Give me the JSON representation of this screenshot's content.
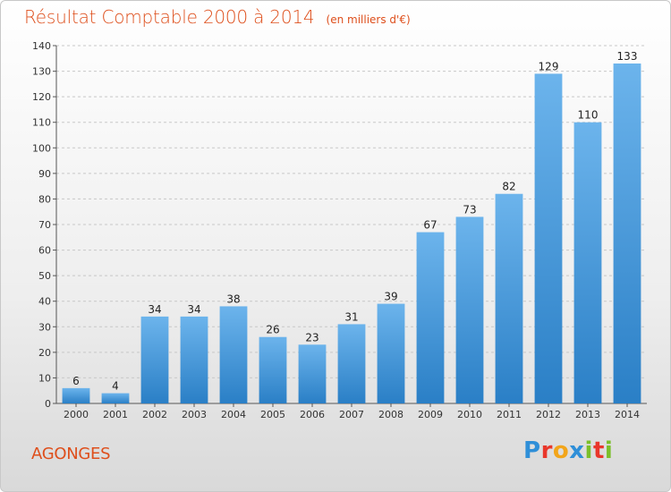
{
  "header": {
    "title": "Résultat Comptable 2000 à 2014",
    "subtitle": "(en milliers d'€)"
  },
  "footer": {
    "location": "AGONGES",
    "brand": [
      {
        "char": "P",
        "color": "#2f8fd8"
      },
      {
        "char": "r",
        "color": "#e9372b"
      },
      {
        "char": "o",
        "color": "#f2a51a"
      },
      {
        "char": "x",
        "color": "#2f8fd8"
      },
      {
        "char": "i",
        "color": "#7bbf2a"
      },
      {
        "char": "t",
        "color": "#e9372b"
      },
      {
        "char": "i",
        "color": "#7bbf2a"
      }
    ]
  },
  "colors": {
    "accent": "#de4f1c",
    "bar_light": "#6cb4ec",
    "bar_dark": "#2a7fc6"
  },
  "chart_data": {
    "type": "bar",
    "title": "Résultat Comptable 2000 à 2014",
    "subtitle": "(en milliers d'€)",
    "xlabel": "",
    "ylabel": "",
    "categories": [
      "2000",
      "2001",
      "2002",
      "2003",
      "2004",
      "2005",
      "2006",
      "2007",
      "2008",
      "2009",
      "2010",
      "2011",
      "2012",
      "2013",
      "2014"
    ],
    "values": [
      6,
      4,
      34,
      34,
      38,
      26,
      23,
      31,
      39,
      67,
      73,
      82,
      129,
      110,
      133
    ],
    "ylim": [
      0,
      140
    ],
    "yticks": [
      0,
      10,
      20,
      30,
      40,
      50,
      60,
      70,
      80,
      90,
      100,
      110,
      120,
      130,
      140
    ],
    "grid": true,
    "data_labels": true
  }
}
